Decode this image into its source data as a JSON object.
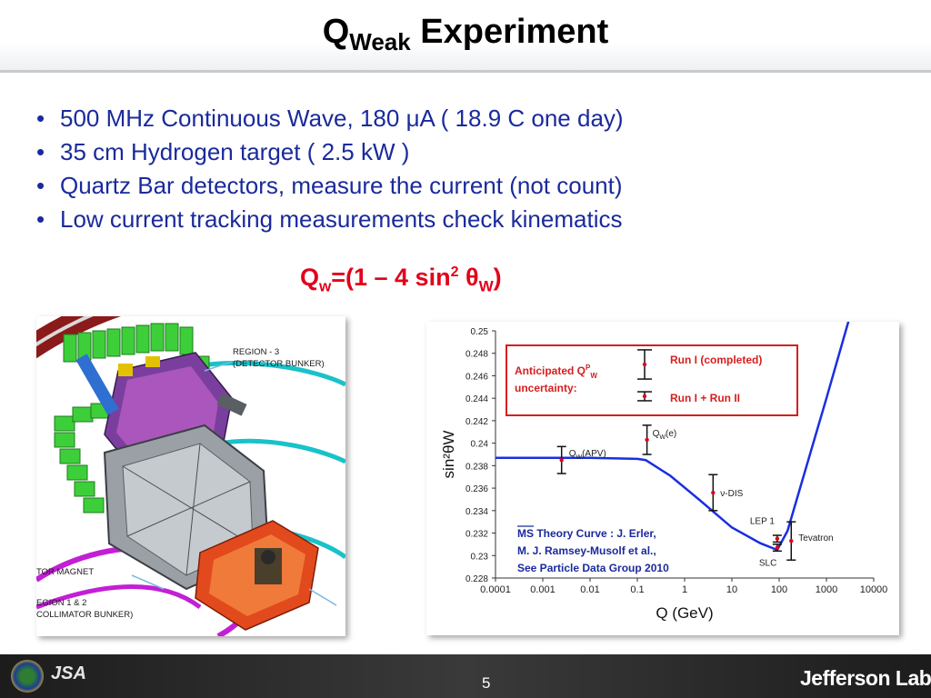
{
  "slide": {
    "title_main": "Q",
    "title_sub": "Weak",
    "title_rest": "Experiment",
    "bullets": [
      "500 MHz Continuous Wave, 180 μA   ( 18.9 C one day)",
      "35 cm Hydrogen target ( 2.5 kW )",
      "Quartz Bar detectors, measure the current (not count)",
      "Low current tracking measurements check kinematics"
    ],
    "bullet_symbol": "•",
    "formula": {
      "q": "Q",
      "w": "w",
      "eq": "=(1 – 4 sin",
      "sq": "2",
      "theta": " θ",
      "W": "W",
      "close": ")"
    },
    "page_number": "5",
    "footer_brand": "Jefferson Lab",
    "footer_logo_jsa": "JSA"
  },
  "apparatus": {
    "region3_a": "REGION - 3",
    "region3_b": "(DETECTOR BUNKER)",
    "magnet": "TOR MAGNET",
    "region12_a": "EGION 1 & 2",
    "region12_b": "COLLIMATOR BUNKER)"
  },
  "chart_data": {
    "type": "line",
    "xlabel_a": "Q (",
    "xlabel_b": "GeV",
    "xlabel_c": ")",
    "ylabel": "sin²θW",
    "x_scale": "log",
    "xlim": [
      0.0001,
      10000
    ],
    "ylim": [
      0.228,
      0.25
    ],
    "x_ticks": [
      "0.0001",
      "0.001",
      "0.01",
      "0.1",
      "1",
      "10",
      "100",
      "1000",
      "10000"
    ],
    "y_ticks": [
      "0.228",
      "0.23",
      "0.232",
      "0.234",
      "0.236",
      "0.238",
      "0.24",
      "0.242",
      "0.244",
      "0.246",
      "0.248",
      "0.25"
    ],
    "theory_curve": [
      [
        0.0001,
        0.2387
      ],
      [
        0.001,
        0.2387
      ],
      [
        0.01,
        0.2387
      ],
      [
        0.1,
        0.2386
      ],
      [
        0.15,
        0.2385
      ],
      [
        0.5,
        0.2371
      ],
      [
        2,
        0.235
      ],
      [
        10,
        0.2325
      ],
      [
        40,
        0.2311
      ],
      [
        91,
        0.2305
      ],
      [
        150,
        0.2322
      ],
      [
        300,
        0.2365
      ],
      [
        1000,
        0.244
      ],
      [
        3000,
        0.251
      ]
    ],
    "measurements": [
      {
        "label": "Q",
        "label_sub": "W",
        "label_rest": "(APV)",
        "x": 0.0025,
        "y": 0.2385,
        "err": 0.0012
      },
      {
        "label": "Q",
        "label_sub": "W",
        "label_rest": "(e)",
        "x": 0.16,
        "y": 0.2403,
        "err": 0.0013
      },
      {
        "label": "ν-DIS",
        "label_sub": "",
        "label_rest": "",
        "x": 4,
        "y": 0.2356,
        "err": 0.0016
      },
      {
        "label": "LEP 1",
        "label_sub": "",
        "label_rest": "",
        "x": 91,
        "y": 0.2315,
        "err": 0.0003
      },
      {
        "label": "SLC",
        "label_sub": "",
        "label_rest": "",
        "x": 91,
        "y": 0.2307,
        "err": 0.0003
      },
      {
        "label": "Tevatron",
        "label_sub": "",
        "label_rest": "",
        "x": 180,
        "y": 0.2313,
        "err": 0.0017
      }
    ],
    "legend": {
      "title_a": "Anticipated Q",
      "title_sup": "P",
      "title_sub": "W",
      "title_b": "uncertainty:",
      "run1": "Run I (completed)",
      "run12": "Run I + Run II",
      "run1_err": 0.0013,
      "run12_err": 0.0004
    },
    "theory_note": [
      "MS Theory Curve :  J. Erler,",
      "M. J. Ramsey-Musolf et al.,",
      "See Particle Data Group 2010"
    ],
    "colors": {
      "curve": "#1a2ee0",
      "legend_box": "#d81e1e",
      "point": "#e3001b",
      "legend_text": "#d81e1e",
      "note_text": "#1a2a9c"
    }
  }
}
